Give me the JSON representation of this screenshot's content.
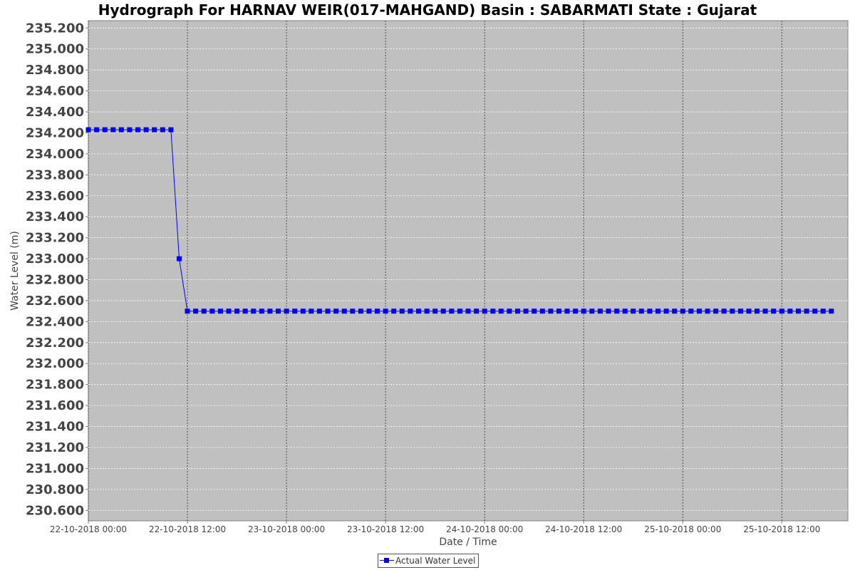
{
  "chart_data": {
    "type": "line",
    "title": "Hydrograph For HARNAV WEIR(017-MAHGAND) Basin : SABARMATI State : Gujarat",
    "xlabel": "Date / Time",
    "ylabel": "Water Level (m)",
    "ylim": [
      230.5,
      235.27
    ],
    "xlim": [
      "2018-10-22T00:00",
      "2018-10-25T20:00"
    ],
    "y_ticks": [
      "230.600",
      "230.800",
      "231.000",
      "231.200",
      "231.400",
      "231.600",
      "231.800",
      "232.000",
      "232.200",
      "232.400",
      "232.600",
      "232.800",
      "233.000",
      "233.200",
      "233.400",
      "233.600",
      "233.800",
      "234.000",
      "234.200",
      "234.400",
      "234.600",
      "234.800",
      "235.000",
      "235.200"
    ],
    "x_ticks": [
      {
        "t": "2018-10-22T00:00",
        "label": "22-10-2018 00:00"
      },
      {
        "t": "2018-10-22T12:00",
        "label": "22-10-2018 12:00"
      },
      {
        "t": "2018-10-23T00:00",
        "label": "23-10-2018 00:00"
      },
      {
        "t": "2018-10-23T12:00",
        "label": "23-10-2018 12:00"
      },
      {
        "t": "2018-10-24T00:00",
        "label": "24-10-2018 00:00"
      },
      {
        "t": "2018-10-24T12:00",
        "label": "24-10-2018 12:00"
      },
      {
        "t": "2018-10-25T00:00",
        "label": "25-10-2018 00:00"
      },
      {
        "t": "2018-10-25T12:00",
        "label": "25-10-2018 12:00"
      }
    ],
    "grid": true,
    "legend_position": "bottom-center",
    "series": [
      {
        "name": "Actual Water Level",
        "color": "#0000ff",
        "marker": "square",
        "x": [
          "2018-10-22T00:00",
          "2018-10-22T01:00",
          "2018-10-22T02:00",
          "2018-10-22T03:00",
          "2018-10-22T04:00",
          "2018-10-22T05:00",
          "2018-10-22T06:00",
          "2018-10-22T07:00",
          "2018-10-22T08:00",
          "2018-10-22T09:00",
          "2018-10-22T10:00",
          "2018-10-22T11:00",
          "2018-10-22T12:00",
          "2018-10-22T13:00",
          "2018-10-22T14:00",
          "2018-10-22T15:00",
          "2018-10-22T16:00",
          "2018-10-22T17:00",
          "2018-10-22T18:00",
          "2018-10-22T19:00",
          "2018-10-22T20:00",
          "2018-10-22T21:00",
          "2018-10-22T22:00",
          "2018-10-22T23:00",
          "2018-10-23T00:00",
          "2018-10-23T01:00",
          "2018-10-23T02:00",
          "2018-10-23T03:00",
          "2018-10-23T04:00",
          "2018-10-23T05:00",
          "2018-10-23T06:00",
          "2018-10-23T07:00",
          "2018-10-23T08:00",
          "2018-10-23T09:00",
          "2018-10-23T10:00",
          "2018-10-23T11:00",
          "2018-10-23T12:00",
          "2018-10-23T13:00",
          "2018-10-23T14:00",
          "2018-10-23T15:00",
          "2018-10-23T16:00",
          "2018-10-23T17:00",
          "2018-10-23T18:00",
          "2018-10-23T19:00",
          "2018-10-23T20:00",
          "2018-10-23T21:00",
          "2018-10-23T22:00",
          "2018-10-23T23:00",
          "2018-10-24T00:00",
          "2018-10-24T01:00",
          "2018-10-24T02:00",
          "2018-10-24T03:00",
          "2018-10-24T04:00",
          "2018-10-24T05:00",
          "2018-10-24T06:00",
          "2018-10-24T07:00",
          "2018-10-24T08:00",
          "2018-10-24T09:00",
          "2018-10-24T10:00",
          "2018-10-24T11:00",
          "2018-10-24T12:00",
          "2018-10-24T13:00",
          "2018-10-24T14:00",
          "2018-10-24T15:00",
          "2018-10-24T16:00",
          "2018-10-24T17:00",
          "2018-10-24T18:00",
          "2018-10-24T19:00",
          "2018-10-24T20:00",
          "2018-10-24T21:00",
          "2018-10-24T22:00",
          "2018-10-24T23:00",
          "2018-10-25T00:00",
          "2018-10-25T01:00",
          "2018-10-25T02:00",
          "2018-10-25T03:00",
          "2018-10-25T04:00",
          "2018-10-25T05:00",
          "2018-10-25T06:00",
          "2018-10-25T07:00",
          "2018-10-25T08:00",
          "2018-10-25T09:00",
          "2018-10-25T10:00",
          "2018-10-25T11:00",
          "2018-10-25T12:00",
          "2018-10-25T13:00",
          "2018-10-25T14:00",
          "2018-10-25T15:00",
          "2018-10-25T16:00",
          "2018-10-25T17:00",
          "2018-10-25T18:00"
        ],
        "y": [
          234.23,
          234.23,
          234.23,
          234.23,
          234.23,
          234.23,
          234.23,
          234.23,
          234.23,
          234.23,
          234.23,
          233.0,
          232.5,
          232.5,
          232.5,
          232.5,
          232.5,
          232.5,
          232.5,
          232.5,
          232.5,
          232.5,
          232.5,
          232.5,
          232.5,
          232.5,
          232.5,
          232.5,
          232.5,
          232.5,
          232.5,
          232.5,
          232.5,
          232.5,
          232.5,
          232.5,
          232.5,
          232.5,
          232.5,
          232.5,
          232.5,
          232.5,
          232.5,
          232.5,
          232.5,
          232.5,
          232.5,
          232.5,
          232.5,
          232.5,
          232.5,
          232.5,
          232.5,
          232.5,
          232.5,
          232.5,
          232.5,
          232.5,
          232.5,
          232.5,
          232.5,
          232.5,
          232.5,
          232.5,
          232.5,
          232.5,
          232.5,
          232.5,
          232.5,
          232.5,
          232.5,
          232.5,
          232.5,
          232.5,
          232.5,
          232.5,
          232.5,
          232.5,
          232.5,
          232.5,
          232.5,
          232.5,
          232.5,
          232.5,
          232.5,
          232.5,
          232.5,
          232.5,
          232.5,
          232.5,
          232.5
        ]
      }
    ]
  }
}
